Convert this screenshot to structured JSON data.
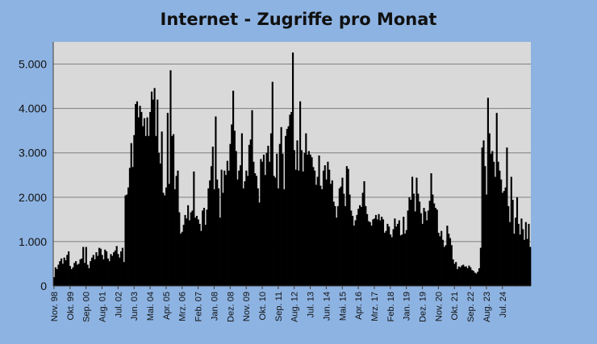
{
  "chart_data": {
    "type": "bar",
    "title": "Internet - Zugriffe pro Monat",
    "xlabel": "",
    "ylabel": "",
    "ylim": [
      0,
      5500
    ],
    "grid": true,
    "y_ticks": [
      {
        "value": 0,
        "label": "0"
      },
      {
        "value": 1000,
        "label": "1.000"
      },
      {
        "value": 2000,
        "label": "2.000"
      },
      {
        "value": 3000,
        "label": "3.000"
      },
      {
        "value": 4000,
        "label": "4.000"
      },
      {
        "value": 5000,
        "label": "5.000"
      }
    ],
    "x_tick_labels": [
      {
        "month": "1998-11",
        "label": "Nov. 98"
      },
      {
        "month": "1999-10",
        "label": "Okt. 99"
      },
      {
        "month": "2000-09",
        "label": "Sep. 00"
      },
      {
        "month": "2001-08",
        "label": "Aug. 01"
      },
      {
        "month": "2002-07",
        "label": "Jul. 02"
      },
      {
        "month": "2003-06",
        "label": "Jun. 03"
      },
      {
        "month": "2004-05",
        "label": "Mai. 04"
      },
      {
        "month": "2005-04",
        "label": "Apr. 05"
      },
      {
        "month": "2006-03",
        "label": "Mrz. 06"
      },
      {
        "month": "2007-02",
        "label": "Feb. 07"
      },
      {
        "month": "2008-01",
        "label": "Jan. 08"
      },
      {
        "month": "2008-12",
        "label": "Dez. 08"
      },
      {
        "month": "2009-11",
        "label": "Nov. 09"
      },
      {
        "month": "2010-10",
        "label": "Okt. 10"
      },
      {
        "month": "2011-09",
        "label": "Sep. 11"
      },
      {
        "month": "2012-08",
        "label": "Aug. 12"
      },
      {
        "month": "2013-07",
        "label": "Jul. 13"
      },
      {
        "month": "2014-06",
        "label": "Jun. 14"
      },
      {
        "month": "2015-05",
        "label": "Mai. 15"
      },
      {
        "month": "2016-04",
        "label": "Apr. 16"
      },
      {
        "month": "2017-03",
        "label": "Mrz. 17"
      },
      {
        "month": "2018-02",
        "label": "Feb. 18"
      },
      {
        "month": "2019-01",
        "label": "Jan. 19"
      },
      {
        "month": "2019-12",
        "label": "Dez. 19"
      },
      {
        "month": "2020-11",
        "label": "Nov. 20"
      },
      {
        "month": "2021-10",
        "label": "Okt. 21"
      },
      {
        "month": "2022-09",
        "label": "Sep. 22"
      },
      {
        "month": "2023-08",
        "label": "Aug. 23"
      },
      {
        "month": "2024-07",
        "label": "Jul. 24"
      }
    ],
    "start_month": "1998-11",
    "values": [
      200,
      420,
      380,
      480,
      560,
      620,
      500,
      640,
      580,
      700,
      780,
      450,
      380,
      420,
      520,
      560,
      480,
      500,
      600,
      620,
      880,
      520,
      880,
      480,
      400,
      560,
      640,
      700,
      600,
      760,
      680,
      860,
      840,
      700,
      600,
      820,
      780,
      620,
      560,
      720,
      680,
      760,
      800,
      900,
      720,
      640,
      780,
      860,
      540,
      2040,
      2060,
      2220,
      2660,
      3220,
      2680,
      3400,
      4100,
      4160,
      3800,
      4060,
      3920,
      3600,
      3780,
      3380,
      3800,
      3380,
      3920,
      4380,
      4200,
      4460,
      3380,
      4200,
      3000,
      2760,
      3480,
      2100,
      2040,
      2220,
      3900,
      2300,
      4860,
      3380,
      3420,
      2180,
      2480,
      2600,
      1660,
      1180,
      1220,
      1380,
      1600,
      1520,
      1820,
      1480,
      1660,
      1700,
      2580,
      1540,
      1580,
      1500,
      1400,
      1240,
      1700,
      1760,
      1380,
      1720,
      2200,
      2380,
      2700,
      3140,
      2180,
      3820,
      2400,
      2200,
      1540,
      2620,
      2100,
      2600,
      2500,
      2820,
      2600,
      3200,
      3640,
      4400,
      3500,
      3040,
      2400,
      2600,
      2720,
      3440,
      2200,
      2360,
      2600,
      2480,
      3180,
      3300,
      3960,
      2800,
      2540,
      2480,
      2200,
      1880,
      2860,
      2800,
      2960,
      2500,
      3000,
      3160,
      2800,
      3440,
      4600,
      2480,
      2440,
      2980,
      2200,
      3200,
      3580,
      2980,
      2180,
      3380,
      3540,
      3600,
      3860,
      3920,
      5260,
      3060,
      2620,
      3280,
      2600,
      4160,
      3060,
      2580,
      3000,
      3440,
      2960,
      3040,
      2960,
      2900,
      2680,
      2600,
      2280,
      2460,
      2940,
      2260,
      2180,
      2600,
      2720,
      2400,
      2800,
      2620,
      2300,
      2380,
      1900,
      1800,
      1540,
      1800,
      2200,
      2240,
      2440,
      2080,
      1800,
      2700,
      2640,
      2060,
      1700,
      1580,
      1360,
      1480,
      1600,
      1740,
      1820,
      1780,
      2100,
      2360,
      1800,
      1620,
      1460,
      1440,
      1360,
      1500,
      1520,
      1600,
      1500,
      1620,
      1480,
      1560,
      1500,
      1200,
      1240,
      1400,
      1340,
      1160,
      1100,
      1280,
      1520,
      1340,
      1400,
      1480,
      1140,
      1160,
      1560,
      1180,
      1260,
      1700,
      2000,
      1940,
      2460,
      2080,
      1680,
      2440,
      2080,
      1900,
      1640,
      1400,
      1760,
      1680,
      1480,
      1700,
      1920,
      2540,
      2060,
      1860,
      1760,
      1720,
      1200,
      1120,
      1240,
      1040,
      880,
      920,
      1360,
      1180,
      1080,
      920,
      600,
      500,
      540,
      380,
      440,
      420,
      460,
      480,
      440,
      440,
      400,
      460,
      420,
      360,
      340,
      300,
      280,
      320,
      400,
      860,
      3120,
      3280,
      2700,
      2060,
      4240,
      3440,
      2980,
      3040,
      2800,
      2460,
      3900,
      2800,
      2600,
      2400,
      2100,
      2140,
      2220,
      3120,
      1800,
      1440,
      2460,
      1940,
      1180,
      1540,
      2000,
      1400,
      1160,
      1520,
      1280,
      1040,
      1440,
      1060,
      1400,
      880
    ]
  }
}
